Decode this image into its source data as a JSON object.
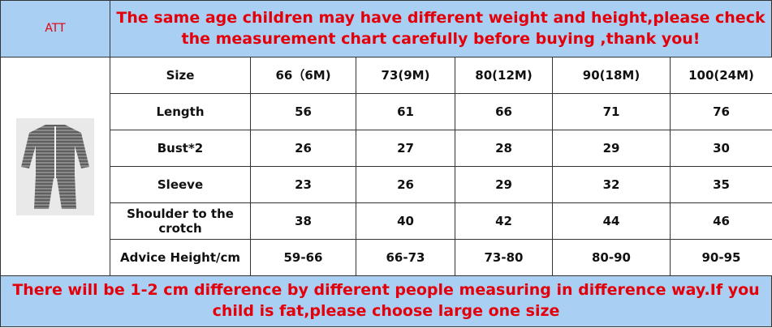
{
  "header": {
    "label": "ATT",
    "notice": "The same age children may have different weight and height,please check the measurement chart carefully before buying ,thank you!"
  },
  "table": {
    "columns": [
      "Size",
      "66（6M)",
      "73(9M)",
      "80(12M)",
      "90(18M)",
      "100(24M)"
    ],
    "rows": [
      [
        "Length",
        56,
        61,
        66,
        71,
        76
      ],
      [
        "Bust*2",
        26,
        27,
        28,
        29,
        30
      ],
      [
        "Sleeve",
        23,
        26,
        29,
        32,
        35
      ],
      [
        "Shoulder to the crotch",
        38,
        40,
        42,
        44,
        46
      ],
      [
        "Advice Height/cm",
        "59-66",
        "66-73",
        "73-80",
        "80-90",
        "90-95"
      ]
    ]
  },
  "footer": {
    "notice": "There will be 1-2 cm difference by different people measuring in difference way.If you child is fat,please choose large one size"
  }
}
